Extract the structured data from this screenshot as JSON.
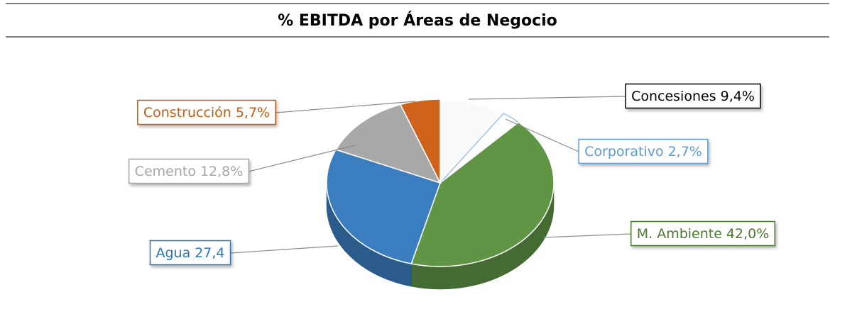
{
  "chart_data": {
    "type": "pie",
    "title": "% EBITDA por Áreas de Negocio",
    "categories": [
      "Concesiones",
      "Corporativo",
      "M. Ambiente",
      "Agua",
      "Cemento",
      "Construcción"
    ],
    "values": [
      9.4,
      2.7,
      42.0,
      27.4,
      12.8,
      5.7
    ],
    "value_labels": [
      "9,4%",
      "2,7%",
      "42,0%",
      "27,4",
      "12,8%",
      "5,7%"
    ],
    "colors": [
      "#fafafa",
      "#ffffff",
      "#5f9545",
      "#3b7ec0",
      "#a8a8a8",
      "#d0631c"
    ],
    "label_colors": [
      "#000000",
      "#5b9bd5",
      "#4a7a2e",
      "#2e75b6",
      "#a6a6a6",
      "#c55a11"
    ]
  }
}
